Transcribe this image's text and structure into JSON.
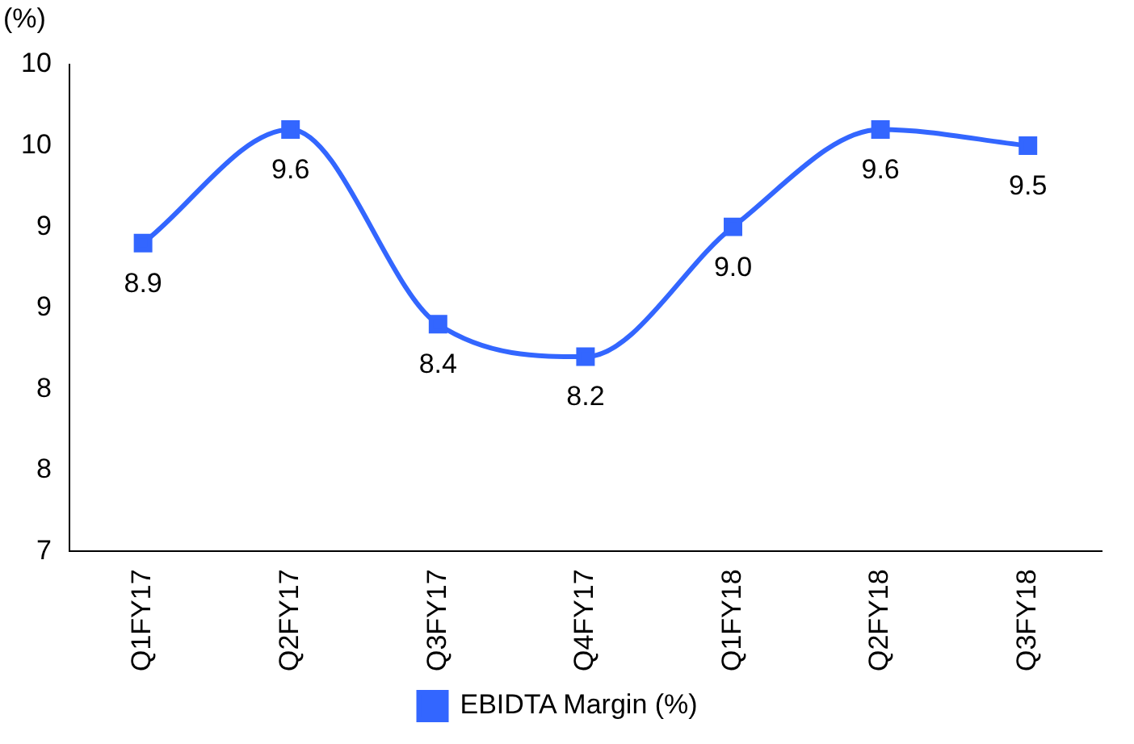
{
  "chart_data": {
    "type": "line",
    "ylabel": "(%)",
    "categories": [
      "Q1FY17",
      "Q2FY17",
      "Q3FY17",
      "Q4FY17",
      "Q1FY18",
      "Q2FY18",
      "Q3FY18"
    ],
    "series": [
      {
        "name": "EBIDTA Margin (%)",
        "color": "#3366ff",
        "values": [
          8.9,
          9.6,
          8.4,
          8.2,
          9.0,
          9.6,
          9.5
        ],
        "value_labels": [
          "8.9",
          "9.6",
          "8.4",
          "8.2",
          "9.0",
          "9.6",
          "9.5"
        ]
      }
    ],
    "ylim": [
      7,
      10
    ],
    "yticks": [
      7,
      {
        "value": 7.5,
        "label": "8"
      },
      8,
      {
        "value": 8.5,
        "label": "9"
      },
      9,
      {
        "value": 9.5,
        "label": "10"
      },
      10
    ],
    "grid": false,
    "legend": "bottom",
    "marker": "square",
    "line_style": "solid"
  }
}
